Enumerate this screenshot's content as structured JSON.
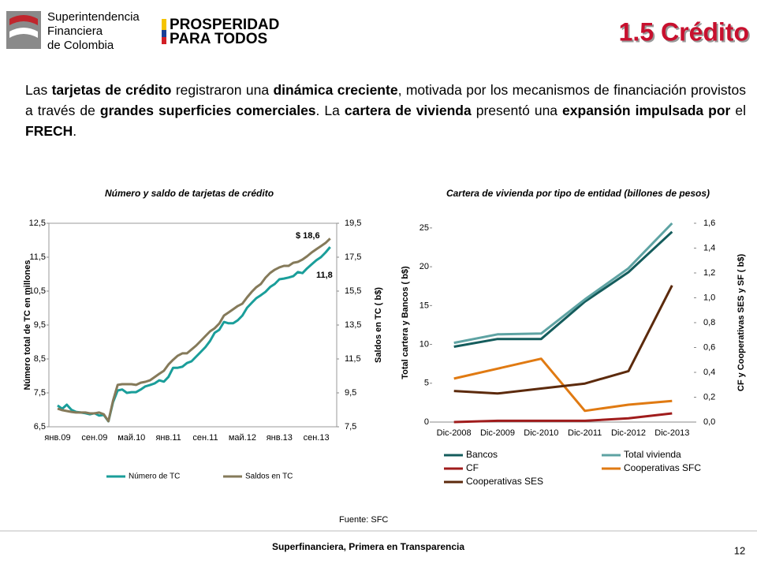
{
  "header": {
    "logo_lines": [
      "Superintendencia",
      "Financiera",
      "de Colombia"
    ],
    "brand_lines": [
      "PROSPERIDAD",
      "PARA TODOS"
    ],
    "title": "1.5 Crédito"
  },
  "paragraph": [
    {
      "text": "Las ",
      "bold": false
    },
    {
      "text": "tarjetas de crédito",
      "bold": true
    },
    {
      "text": " registraron una ",
      "bold": false
    },
    {
      "text": "dinámica creciente",
      "bold": true
    },
    {
      "text": ", motivada por los mecanismos de financiación provistos a través de ",
      "bold": false
    },
    {
      "text": "grandes superficies comerciales",
      "bold": true
    },
    {
      "text": ". La ",
      "bold": false
    },
    {
      "text": "cartera de vivienda",
      "bold": true
    },
    {
      "text": " presentó una ",
      "bold": false
    },
    {
      "text": "expansión impulsada por",
      "bold": true
    },
    {
      "text": " el ",
      "bold": false
    },
    {
      "text": "FRECH",
      "bold": true
    },
    {
      "text": ".",
      "bold": false
    }
  ],
  "chart_data": [
    {
      "type": "line",
      "title": "Número y saldo de tarjetas de crédito",
      "y_label": "Número total de TC en  millones",
      "y2_label": "Saldos en TC  ( b$)",
      "categories": [
        "янв.09",
        null,
        null,
        null,
        null,
        null,
        null,
        null,
        "сен.09",
        null,
        null,
        null,
        null,
        null,
        null,
        null,
        "май.10",
        null,
        null,
        null,
        null,
        null,
        null,
        null,
        "янв.11",
        null,
        null,
        null,
        null,
        null,
        null,
        null,
        "сен.11",
        null,
        null,
        null,
        null,
        null,
        null,
        null,
        "май.12",
        null,
        null,
        null,
        null,
        null,
        null,
        null,
        "янв.13",
        null,
        null,
        null,
        null,
        null,
        null,
        null,
        "сен.13",
        null,
        null,
        null
      ],
      "series": [
        {
          "name": "Número de TC",
          "color": "#1a9e9a",
          "values": [
            7.13,
            7.03,
            7.15,
            7.0,
            6.94,
            6.92,
            6.9,
            6.87,
            6.9,
            6.83,
            6.85,
            6.66,
            7.22,
            7.57,
            7.6,
            7.5,
            7.52,
            7.52,
            7.6,
            7.69,
            7.73,
            7.78,
            7.87,
            7.83,
            7.97,
            8.24,
            8.24,
            8.27,
            8.38,
            8.43,
            8.57,
            8.71,
            8.85,
            9.03,
            9.27,
            9.36,
            9.59,
            9.55,
            9.55,
            9.64,
            9.78,
            10.01,
            10.15,
            10.29,
            10.38,
            10.48,
            10.62,
            10.71,
            10.85,
            10.87,
            10.9,
            10.94,
            11.06,
            11.03,
            11.17,
            11.29,
            11.41,
            11.5,
            11.64,
            11.8
          ]
        },
        {
          "name": "Saldos en TC",
          "color": "#857a5a",
          "axis": "y2",
          "values": [
            8.57,
            8.48,
            8.43,
            8.38,
            8.34,
            8.34,
            8.34,
            8.29,
            8.29,
            8.34,
            8.24,
            7.83,
            9.03,
            9.97,
            10.01,
            10.01,
            10.01,
            9.97,
            10.1,
            10.15,
            10.24,
            10.43,
            10.62,
            10.8,
            11.17,
            11.45,
            11.69,
            11.83,
            11.83,
            12.06,
            12.29,
            12.57,
            12.85,
            13.13,
            13.31,
            13.59,
            14.06,
            14.24,
            14.43,
            14.62,
            14.76,
            15.13,
            15.45,
            15.73,
            15.92,
            16.29,
            16.57,
            16.76,
            16.9,
            16.99,
            16.99,
            17.17,
            17.22,
            17.36,
            17.55,
            17.78,
            17.97,
            18.15,
            18.34,
            18.6
          ]
        }
      ],
      "annotations": [
        {
          "text": "$ 18,6"
        },
        {
          "text": "11,8"
        }
      ],
      "ylim": [
        6.5,
        12.5
      ],
      "yticks": [
        {
          "value": 6.5,
          "label": "6,5"
        },
        {
          "value": 7.5,
          "label": "7,5"
        },
        {
          "value": 8.5,
          "label": "8,5"
        },
        {
          "value": 9.5,
          "label": "9,5"
        },
        {
          "value": 10.5,
          "label": "10,5"
        },
        {
          "value": 11.5,
          "label": "11,5"
        },
        {
          "value": 12.5,
          "label": "12,5"
        }
      ],
      "y2lim": [
        7.5,
        19.5
      ],
      "y2ticks": [
        {
          "value": 7.5,
          "label": "7,5"
        },
        {
          "value": 9.5,
          "label": "9,5"
        },
        {
          "value": 11.5,
          "label": "11,5"
        },
        {
          "value": 13.5,
          "label": "13,5"
        },
        {
          "value": 15.5,
          "label": "15,5"
        },
        {
          "value": 17.5,
          "label": "17,5"
        },
        {
          "value": 19.5,
          "label": "19,5"
        }
      ],
      "legend": "bottom"
    },
    {
      "type": "line",
      "title": "Cartera de vivienda por tipo de entidad (billones de pesos)",
      "y_label": "Total cartera y  Bancos ( b$)",
      "y2_label": "CF y Cooperativas SES y SF ( b$)",
      "categories": [
        "Dic-2008",
        "Dic-2009",
        "Dic-2010",
        "Dic-2011",
        "Dic-2012",
        "Dic-2013"
      ],
      "series": [
        {
          "name": "Bancos",
          "color": "#145c5c",
          "values": [
            9.7,
            10.7,
            10.7,
            15.5,
            19.3,
            24.5
          ]
        },
        {
          "name": "Total vivienda",
          "color": "#5ea3a3",
          "values": [
            10.2,
            11.3,
            11.4,
            15.8,
            19.8,
            25.6
          ]
        },
        {
          "name": "CF",
          "color": "#a01c1c",
          "axis": "y2",
          "values": [
            0.0,
            0.01,
            0.01,
            0.01,
            0.03,
            0.07
          ]
        },
        {
          "name": "Cooperativas SFC",
          "color": "#e07a12",
          "axis": "y2",
          "values": [
            0.35,
            0.43,
            0.51,
            0.09,
            0.14,
            0.17
          ]
        },
        {
          "name": "Cooperativas SES",
          "color": "#5c2a0c",
          "axis": "y2",
          "values": [
            0.25,
            0.23,
            0.27,
            0.31,
            0.41,
            1.1
          ]
        }
      ],
      "ylim": [
        0,
        25.6
      ],
      "yticks": [
        0,
        5,
        10,
        15,
        20,
        25
      ],
      "y2lim": [
        0,
        1.6
      ],
      "y2ticks": [
        {
          "value": 0,
          "label": "0,0"
        },
        {
          "value": 0.2,
          "label": "0,2"
        },
        {
          "value": 0.4,
          "label": "0,4"
        },
        {
          "value": 0.6,
          "label": "0,6"
        },
        {
          "value": 0.8,
          "label": "0,8"
        },
        {
          "value": 1.0,
          "label": "1,0"
        },
        {
          "value": 1.2,
          "label": "1,2"
        },
        {
          "value": 1.4,
          "label": "1,4"
        },
        {
          "value": 1.6,
          "label": "1,6"
        }
      ],
      "legend": "bottom"
    }
  ],
  "source": "Fuente: SFC",
  "footer": "Superfinanciera, Primera en Transparencia",
  "page_number": "12"
}
